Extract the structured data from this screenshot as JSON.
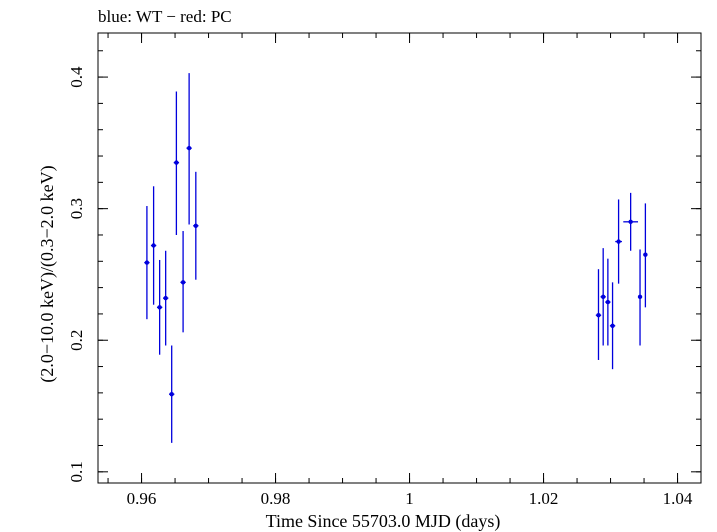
{
  "chart_data": {
    "type": "scatter",
    "title": "blue: WT − red: PC",
    "xlabel": "Time Since 55703.0 MJD (days)",
    "ylabel": "(2.0−10.0 keV)/(0.3−2.0 keV)",
    "xlim": [
      0.9535,
      1.0435
    ],
    "ylim": [
      0.0915,
      0.4335
    ],
    "x_ticks": [
      {
        "value": 0.96,
        "label": "0.96"
      },
      {
        "value": 0.98,
        "label": "0.98"
      },
      {
        "value": 1.0,
        "label": "1"
      },
      {
        "value": 1.02,
        "label": "1.02"
      },
      {
        "value": 1.04,
        "label": "1.04"
      }
    ],
    "y_ticks": [
      {
        "value": 0.1,
        "label": "0.1"
      },
      {
        "value": 0.2,
        "label": "0.2"
      },
      {
        "value": 0.3,
        "label": "0.3"
      },
      {
        "value": 0.4,
        "label": "0.4"
      }
    ],
    "x_minor_step": 0.005,
    "y_minor_step": 0.02,
    "series": [
      {
        "name": "WT",
        "color": "#0000dd",
        "points": [
          {
            "x": 0.9608,
            "xerr": 0.0004,
            "y": 0.259,
            "ylo": 0.216,
            "yhi": 0.302
          },
          {
            "x": 0.9618,
            "xerr": 0.0004,
            "y": 0.272,
            "ylo": 0.227,
            "yhi": 0.317
          },
          {
            "x": 0.9627,
            "xerr": 0.0004,
            "y": 0.225,
            "ylo": 0.189,
            "yhi": 0.261
          },
          {
            "x": 0.9636,
            "xerr": 0.0004,
            "y": 0.232,
            "ylo": 0.196,
            "yhi": 0.268
          },
          {
            "x": 0.9645,
            "xerr": 0.0004,
            "y": 0.159,
            "ylo": 0.122,
            "yhi": 0.196
          },
          {
            "x": 0.9652,
            "xerr": 0.0004,
            "y": 0.335,
            "ylo": 0.28,
            "yhi": 0.389
          },
          {
            "x": 0.9662,
            "xerr": 0.0004,
            "y": 0.244,
            "ylo": 0.206,
            "yhi": 0.283
          },
          {
            "x": 0.9671,
            "xerr": 0.0004,
            "y": 0.346,
            "ylo": 0.288,
            "yhi": 0.403
          },
          {
            "x": 0.9681,
            "xerr": 0.0004,
            "y": 0.287,
            "ylo": 0.246,
            "yhi": 0.328
          },
          {
            "x": 1.0282,
            "xerr": 0.0004,
            "y": 0.219,
            "ylo": 0.185,
            "yhi": 0.254
          },
          {
            "x": 1.0289,
            "xerr": 0.0004,
            "y": 0.233,
            "ylo": 0.196,
            "yhi": 0.27
          },
          {
            "x": 1.0296,
            "xerr": 0.0004,
            "y": 0.229,
            "ylo": 0.196,
            "yhi": 0.262
          },
          {
            "x": 1.0303,
            "xerr": 0.0004,
            "y": 0.211,
            "ylo": 0.178,
            "yhi": 0.244
          },
          {
            "x": 1.0312,
            "xerr": 0.0005,
            "y": 0.275,
            "ylo": 0.243,
            "yhi": 0.307
          },
          {
            "x": 1.033,
            "xerr": 0.0011,
            "y": 0.29,
            "ylo": 0.268,
            "yhi": 0.312
          },
          {
            "x": 1.0344,
            "xerr": 0.0003,
            "y": 0.233,
            "ylo": 0.196,
            "yhi": 0.269
          },
          {
            "x": 1.0352,
            "xerr": 0.0003,
            "y": 0.265,
            "ylo": 0.225,
            "yhi": 0.304
          }
        ]
      }
    ]
  }
}
